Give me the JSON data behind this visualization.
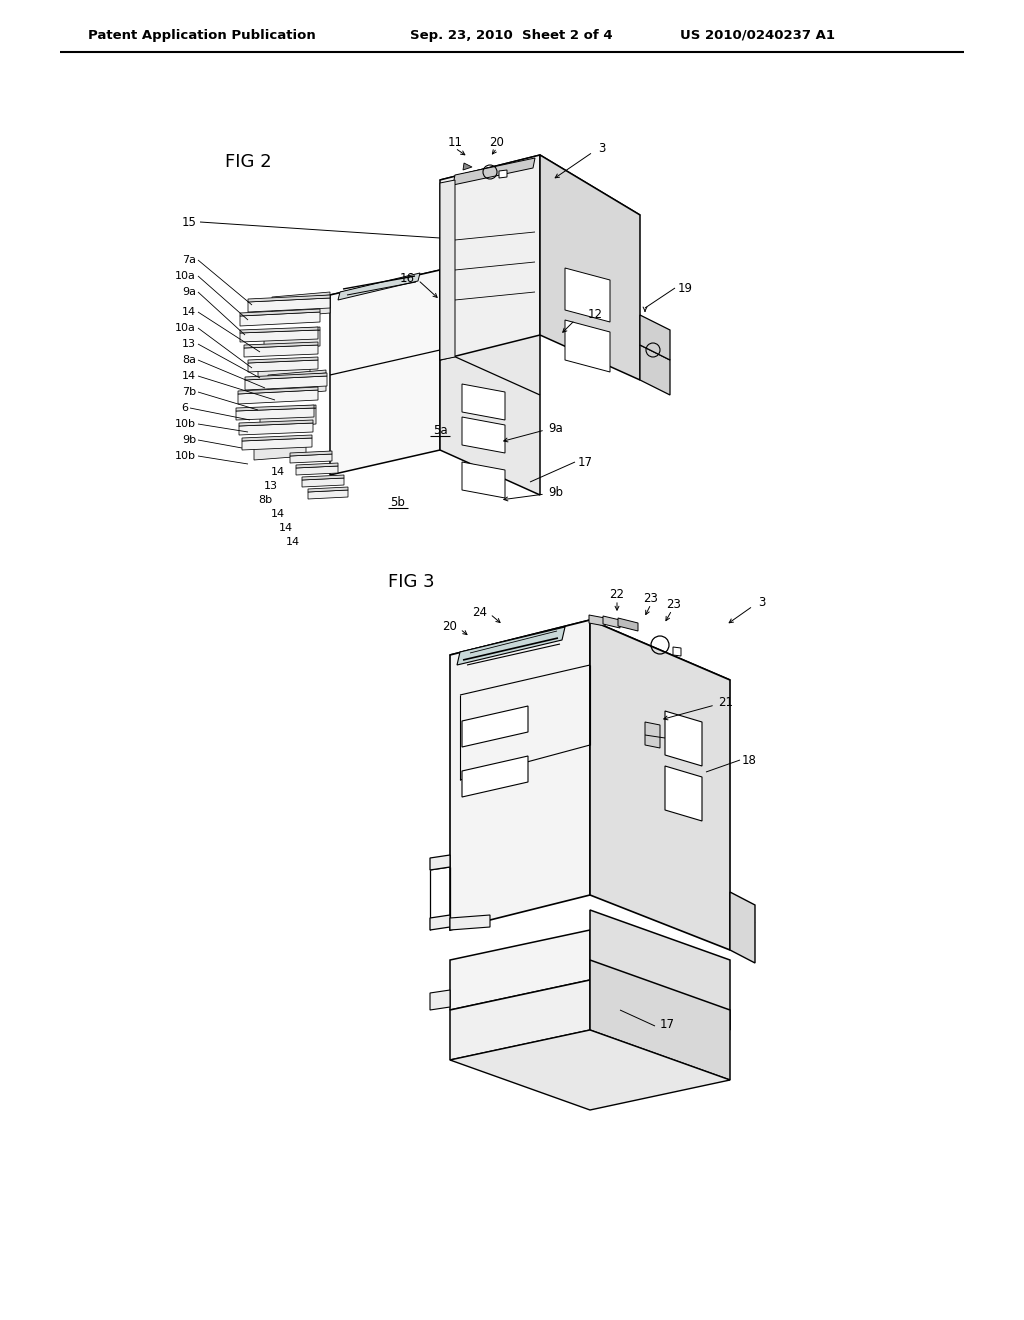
{
  "bg_color": "#ffffff",
  "header_left": "Patent Application Publication",
  "header_center": "Sep. 23, 2010  Sheet 2 of 4",
  "header_right": "US 2010/0240237 A1"
}
